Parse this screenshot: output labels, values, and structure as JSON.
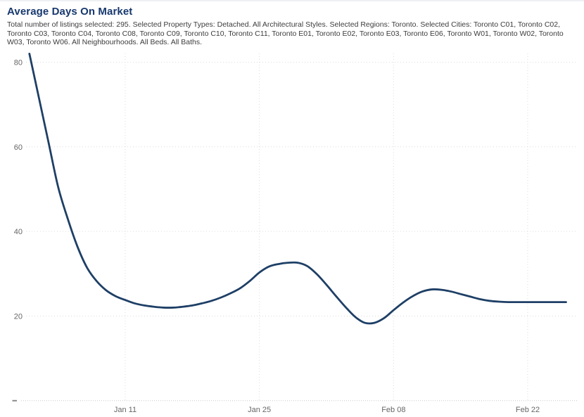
{
  "header": {
    "title": "Average Days On Market",
    "subtitle": "Total number of listings selected: 295. Selected Property Types: Detached. All Architectural Styles. Selected Regions: Toronto. Selected Cities: Toronto C01, Toronto C02, Toronto C03, Toronto C04, Toronto C08, Toronto C09, Toronto C10, Toronto C11, Toronto E01, Toronto E02, Toronto E03, Toronto E06, Toronto W01, Toronto W02, Toronto W03, Toronto W06. All Neighbourhoods. All Beds. All Baths."
  },
  "chart_data": {
    "type": "line",
    "title": "Average Days On Market",
    "series_name": "Average Days On Market",
    "xlabel": "",
    "ylabel": "",
    "x_unit": "days from Jan 1",
    "x_days": [
      0,
      1,
      2,
      3,
      4,
      5,
      6,
      7,
      8,
      9,
      10,
      11,
      12,
      13,
      14,
      15,
      16,
      17,
      18,
      19,
      20,
      21,
      22,
      23,
      24,
      25,
      26,
      27,
      28,
      29,
      30,
      31,
      32,
      33,
      34,
      35,
      36,
      37,
      38,
      39,
      40,
      41,
      42,
      43,
      44,
      45,
      46,
      47,
      48,
      49,
      50,
      51,
      52,
      53,
      54,
      55,
      56
    ],
    "values": [
      82,
      71.5,
      61,
      50.5,
      43,
      36.5,
      31.5,
      28.3,
      26.1,
      24.7,
      23.8,
      23,
      22.5,
      22.2,
      22,
      22,
      22.2,
      22.5,
      23,
      23.6,
      24.4,
      25.4,
      26.6,
      28.3,
      30.3,
      31.7,
      32.3,
      32.6,
      32.6,
      31.8,
      29.9,
      27.4,
      24.7,
      22.1,
      19.8,
      18.4,
      18.4,
      19.5,
      21.4,
      23.2,
      24.7,
      25.8,
      26.3,
      26.2,
      25.8,
      25.2,
      24.6,
      24,
      23.6,
      23.4,
      23.3,
      23.3,
      23.3,
      23.3,
      23.3,
      23.3,
      23.3
    ],
    "x_ticks": [
      {
        "day": 10,
        "label": "Jan 11"
      },
      {
        "day": 24,
        "label": "Jan 25"
      },
      {
        "day": 38,
        "label": "Feb 08"
      },
      {
        "day": 52,
        "label": "Feb 22"
      }
    ],
    "y_ticks": [
      {
        "value": 20,
        "label": "20"
      },
      {
        "value": 40,
        "label": "40"
      },
      {
        "value": 60,
        "label": "60"
      },
      {
        "value": 80,
        "label": "80"
      }
    ],
    "ylim": [
      0,
      82.7
    ],
    "xlim_days": [
      0,
      56
    ],
    "grid": true,
    "grid_style": "dotted",
    "legend_position": "none",
    "colors": {
      "line": "#1e3f66",
      "title": "#17386e",
      "subtitle": "#3c3c3c",
      "tick": "#666666",
      "grid": "#dcdcdc",
      "axis": "#c9c9c9",
      "zero_mark": "#8a8a8a",
      "background": "#ffffff"
    }
  }
}
